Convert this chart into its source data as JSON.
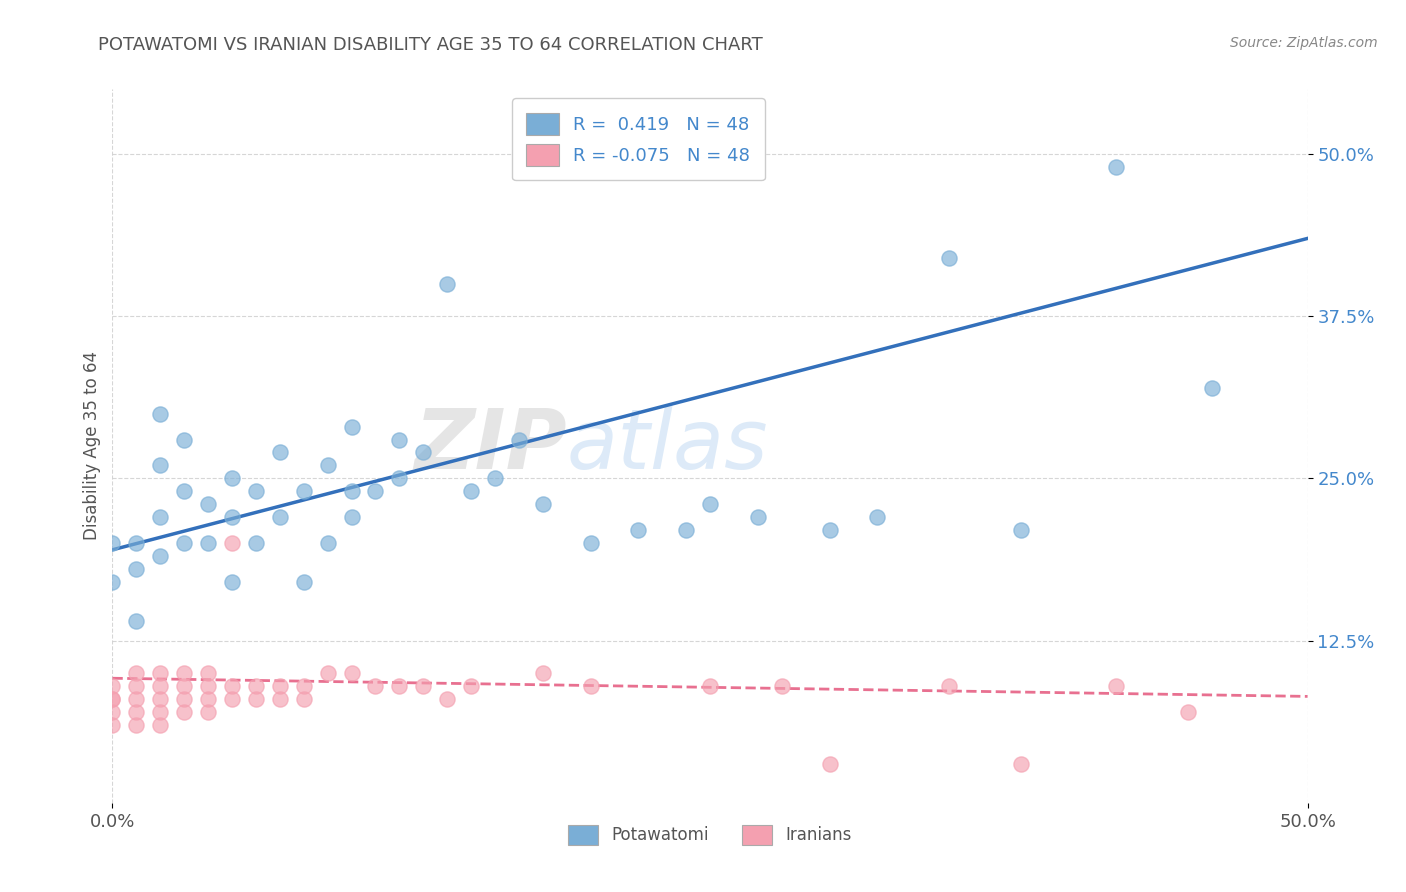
{
  "title": "POTAWATOMI VS IRANIAN DISABILITY AGE 35 TO 64 CORRELATION CHART",
  "source": "Source: ZipAtlas.com",
  "ylabel": "Disability Age 35 to 64",
  "xlim": [
    0.0,
    0.5
  ],
  "ylim": [
    0.0,
    0.55
  ],
  "ytick_labels": [
    "12.5%",
    "25.0%",
    "37.5%",
    "50.0%"
  ],
  "ytick_values": [
    0.125,
    0.25,
    0.375,
    0.5
  ],
  "blue_color": "#7aaed6",
  "pink_color": "#f4a0b0",
  "blue_line_color": "#3370bb",
  "pink_line_color": "#e87090",
  "watermark_zip": "ZIP",
  "watermark_atlas": "atlas",
  "potawatomi_x": [
    0.0,
    0.0,
    0.01,
    0.01,
    0.01,
    0.02,
    0.02,
    0.02,
    0.02,
    0.03,
    0.03,
    0.03,
    0.04,
    0.04,
    0.05,
    0.05,
    0.05,
    0.06,
    0.06,
    0.07,
    0.07,
    0.08,
    0.08,
    0.09,
    0.09,
    0.1,
    0.1,
    0.1,
    0.11,
    0.12,
    0.12,
    0.13,
    0.14,
    0.15,
    0.16,
    0.17,
    0.18,
    0.2,
    0.22,
    0.24,
    0.25,
    0.27,
    0.3,
    0.32,
    0.35,
    0.38,
    0.42,
    0.46
  ],
  "potawatomi_y": [
    0.2,
    0.17,
    0.2,
    0.18,
    0.14,
    0.22,
    0.26,
    0.3,
    0.19,
    0.2,
    0.24,
    0.28,
    0.2,
    0.23,
    0.17,
    0.22,
    0.25,
    0.2,
    0.24,
    0.22,
    0.27,
    0.17,
    0.24,
    0.2,
    0.26,
    0.22,
    0.24,
    0.29,
    0.24,
    0.25,
    0.28,
    0.27,
    0.4,
    0.24,
    0.25,
    0.28,
    0.23,
    0.2,
    0.21,
    0.21,
    0.23,
    0.22,
    0.21,
    0.22,
    0.42,
    0.21,
    0.49,
    0.32
  ],
  "iranians_x": [
    0.0,
    0.0,
    0.0,
    0.0,
    0.0,
    0.01,
    0.01,
    0.01,
    0.01,
    0.01,
    0.02,
    0.02,
    0.02,
    0.02,
    0.02,
    0.03,
    0.03,
    0.03,
    0.03,
    0.04,
    0.04,
    0.04,
    0.04,
    0.05,
    0.05,
    0.05,
    0.06,
    0.06,
    0.07,
    0.07,
    0.08,
    0.08,
    0.09,
    0.1,
    0.11,
    0.12,
    0.13,
    0.14,
    0.15,
    0.18,
    0.2,
    0.25,
    0.28,
    0.3,
    0.35,
    0.38,
    0.42,
    0.45
  ],
  "iranians_y": [
    0.09,
    0.08,
    0.08,
    0.07,
    0.06,
    0.1,
    0.09,
    0.08,
    0.07,
    0.06,
    0.1,
    0.09,
    0.08,
    0.07,
    0.06,
    0.1,
    0.09,
    0.08,
    0.07,
    0.1,
    0.09,
    0.08,
    0.07,
    0.09,
    0.08,
    0.2,
    0.09,
    0.08,
    0.09,
    0.08,
    0.09,
    0.08,
    0.1,
    0.1,
    0.09,
    0.09,
    0.09,
    0.08,
    0.09,
    0.1,
    0.09,
    0.09,
    0.09,
    0.03,
    0.09,
    0.03,
    0.09,
    0.07
  ],
  "blue_line_x": [
    0.0,
    0.5
  ],
  "blue_line_y": [
    0.195,
    0.435
  ],
  "pink_line_x": [
    0.0,
    0.5
  ],
  "pink_line_y": [
    0.096,
    0.082
  ]
}
